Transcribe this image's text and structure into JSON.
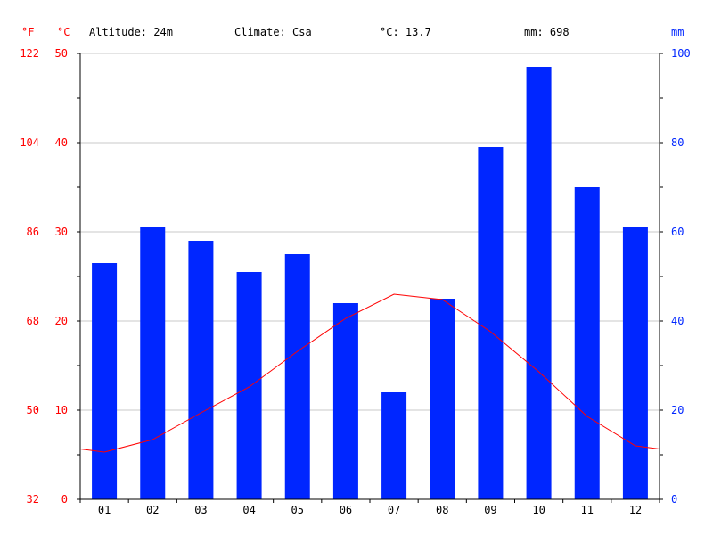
{
  "header": {
    "unit_f": "°F",
    "unit_c": "°C",
    "unit_mm": "mm",
    "altitude": "Altitude: 24m",
    "climate": "Climate: Csa",
    "mean_temp": "°C: 13.7",
    "total_precip": "mm: 698"
  },
  "colors": {
    "precipitation": "#0026ff",
    "temperature": "#ff0000",
    "grid": "#c8c8c8",
    "axis": "#000000"
  },
  "chart_data": {
    "type": "bar",
    "categories": [
      "01",
      "02",
      "03",
      "04",
      "05",
      "06",
      "07",
      "08",
      "09",
      "10",
      "11",
      "12"
    ],
    "series": [
      {
        "values": [
          53,
          61,
          58,
          51,
          55,
          44,
          24,
          45,
          79,
          97,
          70,
          61
        ]
      },
      {
        "values": [
          5.3,
          6.7,
          9.7,
          12.6,
          16.6,
          20.3,
          23.0,
          22.4,
          18.8,
          14.3,
          9.3,
          6.0
        ]
      }
    ],
    "temp_c_ticks": [
      "0",
      "10",
      "20",
      "30",
      "40",
      "50"
    ],
    "temp_f_ticks": [
      "32",
      "50",
      "68",
      "86",
      "104",
      "122"
    ],
    "precip_ticks": [
      "0",
      "20",
      "40",
      "60",
      "80",
      "100"
    ],
    "ylim_temp_c": [
      0,
      50
    ],
    "ylim_precip_mm": [
      0,
      100
    ],
    "grid": true
  }
}
